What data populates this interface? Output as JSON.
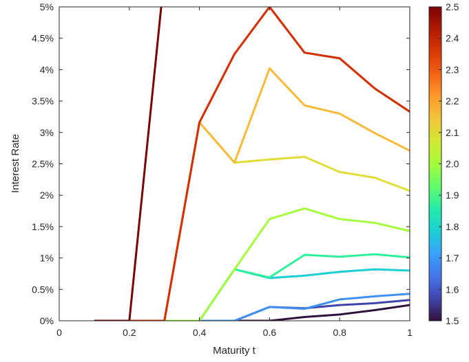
{
  "chart_data": {
    "type": "line",
    "title": "",
    "xlabel": "Maturity t",
    "ylabel": "Interest Rate",
    "xlim": [
      0,
      1
    ],
    "ylim": [
      0,
      0.05
    ],
    "xticks": [
      0,
      0.2,
      0.4,
      0.6,
      0.8,
      1
    ],
    "xtick_labels": [
      "0",
      "0.2",
      "0.4",
      "0.6",
      "0.8",
      "1"
    ],
    "yticks": [
      0,
      0.005,
      0.01,
      0.015,
      0.02,
      0.025,
      0.03,
      0.035,
      0.04,
      0.045,
      0.05
    ],
    "ytick_labels": [
      "0%",
      "0.5%",
      "1%",
      "1.5%",
      "2%",
      "2.5%",
      "3%",
      "3.5%",
      "4%",
      "4.5%",
      "5%"
    ],
    "grid": false,
    "x": [
      0.1,
      0.2,
      0.3,
      0.4,
      0.5,
      0.6,
      0.7,
      0.8,
      0.9,
      1.0
    ],
    "series": [
      {
        "param": 1.5,
        "color": "#30123b",
        "values": [
          0,
          0,
          0,
          0,
          0,
          0,
          0.0006,
          0.001,
          0.0017,
          0.0025
        ]
      },
      {
        "param": 1.6,
        "color": "#4145ab",
        "values": [
          0,
          0,
          0,
          0,
          0,
          0.0022,
          0.002,
          0.0025,
          0.0028,
          0.0033
        ]
      },
      {
        "param": 1.7,
        "color": "#3e90f5",
        "values": [
          0,
          0,
          0,
          0,
          0,
          0.0022,
          0.0019,
          0.0034,
          0.0039,
          0.0043
        ]
      },
      {
        "param": 1.8,
        "color": "#1bcfd4",
        "values": [
          0,
          0,
          0,
          0,
          0.0082,
          0.0068,
          0.0072,
          0.0078,
          0.0082,
          0.008
        ]
      },
      {
        "param": 1.9,
        "color": "#2ef19c",
        "values": [
          0,
          0,
          0,
          0,
          0.0082,
          0.0069,
          0.0105,
          0.0102,
          0.0106,
          0.0101
        ]
      },
      {
        "param": 2.0,
        "color": "#a4fc3c",
        "values": [
          0,
          0,
          0,
          0,
          0.0082,
          0.0162,
          0.0179,
          0.0162,
          0.0156,
          0.0143
        ]
      },
      {
        "param": 2.1,
        "color": "#e1dd37",
        "values": [
          0,
          0,
          0,
          0.0316,
          0.0252,
          0.0257,
          0.0261,
          0.0237,
          0.0228,
          0.0207
        ]
      },
      {
        "param": 2.2,
        "color": "#fbb938",
        "values": [
          0,
          0,
          0,
          0.0316,
          0.0252,
          0.0402,
          0.0343,
          0.033,
          0.0299,
          0.0271
        ]
      },
      {
        "param": 2.3,
        "color": "#f66b19",
        "values": [
          0,
          0,
          0,
          0.0316,
          0.0425,
          0.05,
          0.0427,
          0.0418,
          0.037,
          0.0333
        ]
      },
      {
        "param": 2.4,
        "color": "#d23105",
        "values": [
          0,
          0,
          0,
          0.0316,
          0.0425,
          0.05,
          0.0427,
          0.0418,
          0.037,
          0.0333
        ]
      },
      {
        "param": 2.5,
        "color": "#7a0403",
        "values": [
          0,
          0,
          0.055,
          null,
          null,
          null,
          null,
          null,
          null,
          null
        ]
      }
    ],
    "colorbar": {
      "range": [
        1.5,
        2.5
      ],
      "ticks": [
        "1.5",
        "1.6",
        "1.7",
        "1.8",
        "1.9",
        "2.0",
        "2.1",
        "2.2",
        "2.3",
        "2.4",
        "2.5"
      ],
      "colormap": "turbo",
      "stops": [
        "#30123b",
        "#4145ab",
        "#4675ed",
        "#39a2fc",
        "#1bcfd4",
        "#24eca6",
        "#61fc6c",
        "#a4fc3b",
        "#d1e834",
        "#f3c63a",
        "#fe9b2d",
        "#f36315",
        "#d93806",
        "#b11901",
        "#7a0403"
      ]
    }
  }
}
